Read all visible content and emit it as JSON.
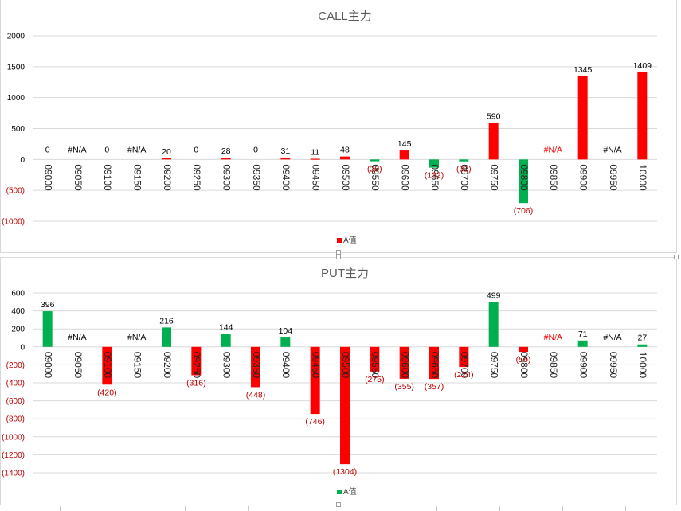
{
  "colors": {
    "positive": "#ff0000",
    "negative_call": "#00b050",
    "positive_put": "#00b050",
    "negative_put": "#ff0000",
    "neg_tick": "#c00000",
    "axis_tick": "#000000"
  },
  "chart_data": [
    {
      "type": "bar",
      "title": "CALL主力",
      "legend": {
        "label": "A值",
        "position": "bottom"
      },
      "categories": [
        "09000",
        "09050",
        "09100",
        "09150",
        "09200",
        "09250",
        "09300",
        "09350",
        "09400",
        "09450",
        "09500",
        "09550",
        "09600",
        "09650",
        "09700",
        "09750",
        "09800",
        "09850",
        "09900",
        "09950",
        "10000"
      ],
      "values": [
        0,
        null,
        0,
        null,
        20,
        0,
        28,
        0,
        31,
        11,
        48,
        -29,
        145,
        -132,
        -31,
        590,
        -706,
        null,
        1345,
        null,
        1409
      ],
      "data_labels": [
        "0",
        "#N/A",
        "0",
        "#N/A",
        "20",
        "0",
        "28",
        "0",
        "31",
        "11",
        "48",
        "(29)",
        "145",
        "(132)",
        "(31)",
        "590",
        "(706)",
        "#N/A",
        "1345",
        "#N/A",
        "1409"
      ],
      "ylim": [
        -1000,
        2000
      ],
      "yticks": [
        2000,
        1500,
        1000,
        500,
        0,
        -500,
        -1000
      ],
      "ytick_labels": [
        "2000",
        "1500",
        "1000",
        "500",
        "0",
        "(500)",
        "(1000)"
      ],
      "grid": true
    },
    {
      "type": "bar",
      "title": "PUT主力",
      "legend": {
        "label": "A值",
        "position": "bottom"
      },
      "categories": [
        "09000",
        "09050",
        "09100",
        "09150",
        "09200",
        "09250",
        "09300",
        "09350",
        "09400",
        "09450",
        "09500",
        "09550",
        "09600",
        "09650",
        "09700",
        "09750",
        "09800",
        "09850",
        "09900",
        "09950",
        "10000"
      ],
      "values": [
        396,
        null,
        -420,
        null,
        216,
        -316,
        144,
        -448,
        104,
        -746,
        -1304,
        -275,
        -355,
        -357,
        -224,
        499,
        -56,
        null,
        71,
        null,
        27
      ],
      "data_labels": [
        "396",
        "#N/A",
        "(420)",
        "#N/A",
        "216",
        "(316)",
        "144",
        "(448)",
        "104",
        "(746)",
        "(1304)",
        "(275)",
        "(355)",
        "(357)",
        "(224)",
        "499",
        "(56)",
        "#N/A",
        "71",
        "#N/A",
        "27"
      ],
      "ylim": [
        -1400,
        600
      ],
      "yticks": [
        600,
        400,
        200,
        0,
        -200,
        -400,
        -600,
        -800,
        -1000,
        -1200,
        -1400
      ],
      "ytick_labels": [
        "600",
        "400",
        "200",
        "0",
        "(200)",
        "(400)",
        "(600)",
        "(800)",
        "(1000)",
        "(1200)",
        "(1400)"
      ],
      "grid": true
    }
  ]
}
